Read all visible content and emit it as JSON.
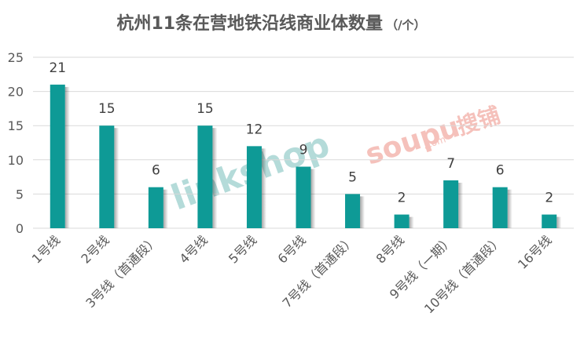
{
  "chart_data": {
    "type": "bar",
    "title": "杭州11条在营地铁沿线商业体数量",
    "title_unit": "（/个）",
    "categories": [
      "1号线",
      "2号线",
      "3号线（首通段）",
      "4号线",
      "5号线",
      "6号线",
      "7号线（首通段）",
      "8号线",
      "9号线（一期）",
      "10号线（首通段）",
      "16号线"
    ],
    "values": [
      21,
      15,
      6,
      15,
      12,
      9,
      5,
      2,
      7,
      6,
      2
    ],
    "ylim": [
      0,
      25
    ],
    "yticks": [
      0,
      5,
      10,
      15,
      20,
      25
    ],
    "grid": true,
    "bar_color": "#0e9a96",
    "data_labels": true
  },
  "watermarks": {
    "left_text": "linkshop",
    "right_text": "soupu",
    "right_suffix": ".com",
    "right_cn": "搜铺",
    "left_color": "#a8d5d3",
    "right_color": "#f4b7b0"
  }
}
